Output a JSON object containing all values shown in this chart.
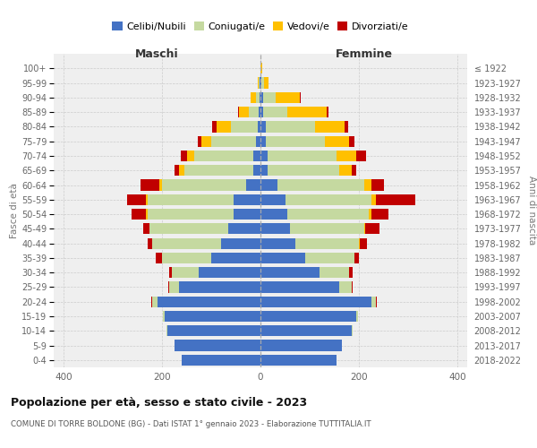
{
  "age_groups": [
    "100+",
    "95-99",
    "90-94",
    "85-89",
    "80-84",
    "75-79",
    "70-74",
    "65-69",
    "60-64",
    "55-59",
    "50-54",
    "45-49",
    "40-44",
    "35-39",
    "30-34",
    "25-29",
    "20-24",
    "15-19",
    "10-14",
    "5-9",
    "0-4"
  ],
  "birth_years": [
    "≤ 1922",
    "1923-1927",
    "1928-1932",
    "1933-1937",
    "1938-1942",
    "1943-1947",
    "1948-1952",
    "1953-1957",
    "1958-1962",
    "1963-1967",
    "1968-1972",
    "1973-1977",
    "1978-1982",
    "1983-1987",
    "1988-1992",
    "1993-1997",
    "1998-2002",
    "2003-2007",
    "2008-2012",
    "2013-2017",
    "2018-2022"
  ],
  "male_celibe": [
    0,
    1,
    2,
    3,
    5,
    10,
    15,
    15,
    30,
    55,
    55,
    65,
    80,
    100,
    125,
    165,
    210,
    195,
    190,
    175,
    160
  ],
  "male_coniugato": [
    0,
    2,
    8,
    20,
    55,
    90,
    120,
    140,
    170,
    175,
    175,
    160,
    140,
    100,
    55,
    20,
    10,
    3,
    1,
    0,
    0
  ],
  "male_vedovo": [
    0,
    2,
    10,
    20,
    30,
    20,
    15,
    10,
    5,
    3,
    2,
    1,
    0,
    0,
    0,
    0,
    0,
    0,
    0,
    0,
    0
  ],
  "male_divorziato": [
    0,
    0,
    0,
    2,
    8,
    8,
    12,
    10,
    38,
    38,
    30,
    12,
    10,
    12,
    5,
    3,
    1,
    0,
    0,
    0,
    0
  ],
  "female_celibe": [
    0,
    2,
    5,
    5,
    10,
    10,
    15,
    15,
    35,
    50,
    55,
    60,
    70,
    90,
    120,
    160,
    225,
    195,
    185,
    165,
    155
  ],
  "female_coniugata": [
    0,
    5,
    25,
    50,
    100,
    120,
    140,
    145,
    175,
    175,
    165,
    150,
    130,
    100,
    60,
    25,
    10,
    3,
    2,
    1,
    0
  ],
  "female_vedova": [
    3,
    10,
    50,
    80,
    60,
    50,
    40,
    25,
    15,
    10,
    5,
    2,
    1,
    0,
    0,
    0,
    0,
    0,
    0,
    0,
    0
  ],
  "female_divorziata": [
    0,
    0,
    2,
    3,
    8,
    10,
    20,
    10,
    25,
    80,
    35,
    30,
    15,
    10,
    8,
    3,
    2,
    0,
    0,
    0,
    0
  ],
  "color_celibe": "#4472c4",
  "color_coniugato": "#c5d9a0",
  "color_vedovo": "#ffc000",
  "color_divorziato": "#c00000",
  "title1": "Popolazione per età, sesso e stato civile - 2023",
  "title2": "COMUNE DI TORRE BOLDONE (BG) - Dati ISTAT 1° gennaio 2023 - Elaborazione TUTTITALIA.IT",
  "label_maschi": "Maschi",
  "label_femmine": "Femmine",
  "ylabel_left": "Fasce di età",
  "ylabel_right": "Anni di nascita",
  "xlim": 420,
  "bg_color": "#ffffff",
  "plot_bg": "#efefef",
  "grid_color": "#cccccc",
  "legend_labels": [
    "Celibi/Nubili",
    "Coniugati/e",
    "Vedovi/e",
    "Divorziati/e"
  ]
}
